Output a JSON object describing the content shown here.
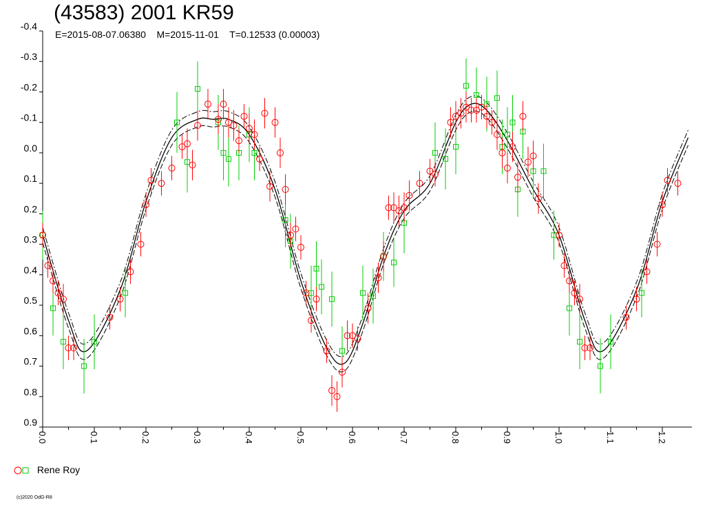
{
  "header": {
    "title": "(43583) 2001 KR59",
    "subtitle": "E=2015-08-07.06380    M=2015-11-01    T=0.12533 (0.00003)"
  },
  "legend": {
    "label": "Rene Roy",
    "red_color": "#ff0000",
    "green_color": "#00cc00"
  },
  "footer": {
    "copyright": "(c)2020 OdG-R8"
  },
  "chart_data": {
    "type": "scatter",
    "xlabel": "",
    "ylabel": "",
    "xlim": [
      0.0,
      1.25
    ],
    "ylim": [
      -0.4,
      0.9
    ],
    "y_inverted": true,
    "x_ticks": [
      "0.0",
      "0.1",
      "0.2",
      "0.3",
      "0.4",
      "0.5",
      "0.6",
      "0.7",
      "0.8",
      "0.9",
      "1.0",
      "1.1",
      "1.2"
    ],
    "y_ticks": [
      "-0.4",
      "-0.3",
      "-0.2",
      "-0.1",
      "0.0",
      "0.1",
      "0.2",
      "0.3",
      "0.4",
      "0.5",
      "0.6",
      "0.7",
      "0.8",
      "0.9"
    ],
    "grid": false,
    "legend_position": "bottom-left",
    "series": [
      {
        "name": "Rene Roy",
        "marker": "circle",
        "color": "#ff0000",
        "x": [
          0.0,
          0.01,
          0.02,
          0.03,
          0.04,
          0.05,
          0.06,
          0.13,
          0.15,
          0.17,
          0.19,
          0.2,
          0.21,
          0.23,
          0.25,
          0.27,
          0.28,
          0.29,
          0.3,
          0.32,
          0.34,
          0.35,
          0.36,
          0.37,
          0.38,
          0.39,
          0.4,
          0.41,
          0.42,
          0.43,
          0.44,
          0.45,
          0.46,
          0.47,
          0.48,
          0.49,
          0.5,
          0.51,
          0.52,
          0.53,
          0.55,
          0.56,
          0.57,
          0.58,
          0.59,
          0.6,
          0.61,
          0.63,
          0.65,
          0.66,
          0.67,
          0.68,
          0.69,
          0.7,
          0.71,
          0.73,
          0.75,
          0.76,
          0.79,
          0.8,
          0.81,
          0.82,
          0.83,
          0.84,
          0.85,
          0.86,
          0.87,
          0.88,
          0.89,
          0.9,
          0.91,
          0.92,
          0.93,
          0.94,
          0.95,
          0.96,
          1.0,
          1.01,
          1.02,
          1.03,
          1.04,
          1.05,
          1.06,
          1.13,
          1.15,
          1.17,
          1.19,
          1.2,
          1.21,
          1.23
        ],
        "values": [
          0.27,
          0.37,
          0.42,
          0.46,
          0.48,
          0.64,
          0.64,
          0.54,
          0.48,
          0.39,
          0.3,
          0.17,
          0.09,
          0.1,
          0.05,
          -0.02,
          -0.03,
          0.04,
          -0.09,
          -0.16,
          -0.11,
          -0.16,
          -0.1,
          -0.09,
          -0.04,
          -0.12,
          -0.08,
          -0.06,
          0.02,
          -0.13,
          0.11,
          -0.1,
          0.0,
          0.12,
          0.27,
          0.25,
          0.31,
          0.46,
          0.55,
          0.48,
          0.65,
          0.78,
          0.8,
          0.72,
          0.6,
          0.6,
          0.61,
          0.51,
          0.41,
          0.34,
          0.18,
          0.18,
          0.19,
          0.18,
          0.14,
          0.1,
          0.06,
          0.07,
          -0.1,
          -0.12,
          -0.13,
          -0.15,
          -0.14,
          -0.14,
          -0.15,
          -0.12,
          -0.1,
          -0.06,
          0.0,
          0.05,
          -0.02,
          0.08,
          -0.12,
          0.03,
          0.01,
          0.15,
          0.27,
          0.37,
          0.42,
          0.46,
          0.48,
          0.64,
          0.64,
          0.54,
          0.48,
          0.39,
          0.3,
          0.17,
          0.09,
          0.1
        ],
        "errors": [
          0.04,
          0.04,
          0.04,
          0.04,
          0.05,
          0.04,
          0.04,
          0.04,
          0.04,
          0.04,
          0.04,
          0.04,
          0.04,
          0.04,
          0.04,
          0.04,
          0.05,
          0.05,
          0.05,
          0.05,
          0.05,
          0.05,
          0.05,
          0.05,
          0.04,
          0.04,
          0.05,
          0.05,
          0.04,
          0.05,
          0.05,
          0.05,
          0.05,
          0.05,
          0.04,
          0.04,
          0.04,
          0.04,
          0.04,
          0.04,
          0.04,
          0.05,
          0.05,
          0.05,
          0.05,
          0.04,
          0.04,
          0.05,
          0.05,
          0.05,
          0.04,
          0.05,
          0.05,
          0.05,
          0.05,
          0.04,
          0.04,
          0.04,
          0.05,
          0.05,
          0.05,
          0.05,
          0.04,
          0.04,
          0.04,
          0.04,
          0.04,
          0.05,
          0.05,
          0.05,
          0.05,
          0.05,
          0.05,
          0.05,
          0.05,
          0.05,
          0.04,
          0.04,
          0.04,
          0.04,
          0.05,
          0.04,
          0.04,
          0.04,
          0.04,
          0.04,
          0.04,
          0.04,
          0.04,
          0.04
        ]
      },
      {
        "name": "Rene Roy",
        "marker": "square",
        "color": "#00cc00",
        "x": [
          0.0,
          0.02,
          0.04,
          0.1,
          0.08,
          0.16,
          0.26,
          0.28,
          0.3,
          0.34,
          0.35,
          0.36,
          0.38,
          0.4,
          0.41,
          0.47,
          0.48,
          0.52,
          0.53,
          0.54,
          0.56,
          0.58,
          0.62,
          0.64,
          0.66,
          0.68,
          0.7,
          0.76,
          0.78,
          0.8,
          0.82,
          0.84,
          0.86,
          0.88,
          0.89,
          0.9,
          0.91,
          0.92,
          0.93,
          0.95,
          0.97,
          0.99,
          1.02,
          1.04,
          1.1,
          1.08,
          1.16
        ],
        "values": [
          0.27,
          0.51,
          0.62,
          0.62,
          0.7,
          0.46,
          -0.1,
          0.03,
          -0.21,
          -0.1,
          0.0,
          0.02,
          0.0,
          -0.06,
          0.0,
          0.22,
          0.29,
          0.46,
          0.38,
          0.44,
          0.48,
          0.65,
          0.46,
          0.47,
          0.34,
          0.36,
          0.23,
          0.0,
          0.02,
          -0.02,
          -0.22,
          -0.19,
          -0.16,
          -0.18,
          -0.02,
          -0.06,
          -0.1,
          0.12,
          -0.07,
          0.06,
          0.06,
          0.27,
          0.51,
          0.62,
          0.62,
          0.7,
          0.46
        ],
        "errors": [
          0.08,
          0.09,
          0.09,
          0.09,
          0.09,
          0.08,
          0.1,
          0.1,
          0.09,
          0.09,
          0.09,
          0.09,
          0.09,
          0.09,
          0.09,
          0.09,
          0.09,
          0.09,
          0.09,
          0.09,
          0.09,
          0.08,
          0.09,
          0.09,
          0.08,
          0.08,
          0.1,
          0.1,
          0.1,
          0.09,
          0.09,
          0.09,
          0.09,
          0.09,
          0.09,
          0.09,
          0.09,
          0.09,
          0.09,
          0.09,
          0.09,
          0.08,
          0.09,
          0.09,
          0.09,
          0.09,
          0.08
        ]
      },
      {
        "name": "",
        "marker": "none",
        "color": "#000000",
        "style": "solid",
        "x": [
          0.0,
          0.05,
          0.085,
          0.15,
          0.2,
          0.25,
          0.3,
          0.33,
          0.36,
          0.4,
          0.45,
          0.5,
          0.55,
          0.585,
          0.62,
          0.66,
          0.7,
          0.75,
          0.8,
          0.83,
          0.86,
          0.9,
          0.95,
          1.0,
          1.05,
          1.085,
          1.15,
          1.2,
          1.25
        ],
        "values": [
          0.27,
          0.55,
          0.65,
          0.45,
          0.16,
          -0.05,
          -0.11,
          -0.11,
          -0.11,
          -0.06,
          0.12,
          0.42,
          0.64,
          0.69,
          0.56,
          0.34,
          0.19,
          0.1,
          -0.1,
          -0.16,
          -0.14,
          -0.04,
          0.12,
          0.27,
          0.55,
          0.65,
          0.45,
          0.16,
          -0.05
        ]
      }
    ]
  }
}
